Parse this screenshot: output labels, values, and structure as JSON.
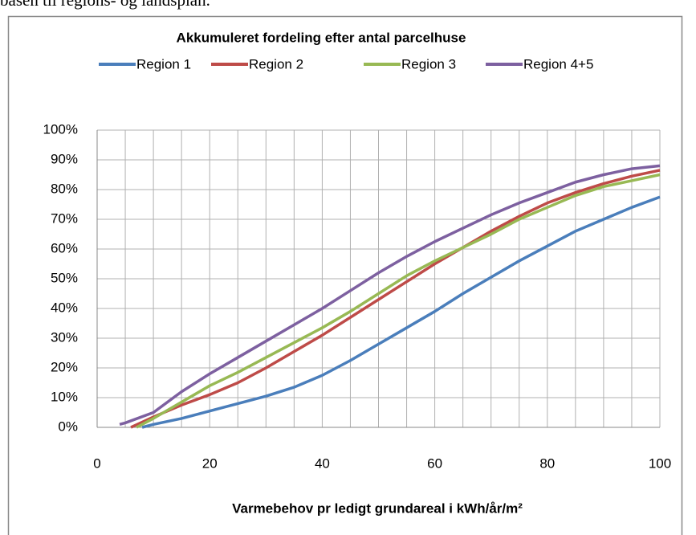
{
  "page_text": "basen til regions- og landsplan.",
  "chart_data": {
    "type": "line",
    "title": "Akkumuleret fordeling efter antal parcelhuse",
    "x_label": "Varmebehov pr ledigt grundareal i kWh/år/m²",
    "xlim": [
      0,
      100
    ],
    "xticks": [
      0,
      20,
      40,
      60,
      80,
      100
    ],
    "xgrid": [
      0,
      5,
      10,
      15,
      20,
      25,
      30,
      35,
      40,
      45,
      50,
      55,
      60,
      65,
      70,
      75,
      80,
      85,
      90,
      95,
      100
    ],
    "ylim": [
      0,
      100
    ],
    "yticks": [
      {
        "value": 0,
        "label": "0%"
      },
      {
        "value": 10,
        "label": "10%"
      },
      {
        "value": 20,
        "label": "20%"
      },
      {
        "value": 30,
        "label": "30%"
      },
      {
        "value": 40,
        "label": "40%"
      },
      {
        "value": 50,
        "label": "50%"
      },
      {
        "value": 60,
        "label": "60%"
      },
      {
        "value": 70,
        "label": "70%"
      },
      {
        "value": 80,
        "label": "80%"
      },
      {
        "value": 90,
        "label": "90%"
      },
      {
        "value": 100,
        "label": "100%"
      }
    ],
    "grid": true,
    "legend": "top",
    "series": [
      {
        "name": "Region 1",
        "color": "#4a7ebb",
        "x": [
          8,
          10,
          15,
          20,
          25,
          30,
          35,
          40,
          45,
          50,
          55,
          60,
          65,
          70,
          75,
          80,
          85,
          90,
          95,
          100
        ],
        "values": [
          0,
          1,
          3,
          5.5,
          8,
          10.5,
          13.5,
          17.5,
          22.5,
          28,
          33.5,
          39,
          45,
          50.5,
          56,
          61,
          66,
          70,
          74,
          77.5
        ]
      },
      {
        "name": "Region 2",
        "color": "#be4b48",
        "x": [
          6,
          10,
          15,
          20,
          25,
          30,
          35,
          40,
          45,
          50,
          55,
          60,
          65,
          70,
          75,
          80,
          85,
          90,
          95,
          100
        ],
        "values": [
          0,
          3.5,
          7.5,
          11,
          15,
          20,
          25.5,
          31,
          37,
          43,
          49,
          55,
          60.5,
          66,
          71,
          75.5,
          79,
          82,
          84.5,
          86.5
        ]
      },
      {
        "name": "Region 3",
        "color": "#98b954",
        "x": [
          7,
          10,
          15,
          20,
          25,
          30,
          35,
          40,
          45,
          50,
          55,
          60,
          65,
          70,
          75,
          80,
          85,
          90,
          95,
          100
        ],
        "values": [
          0,
          3,
          8.5,
          14,
          18.5,
          23.5,
          28.5,
          33.5,
          39,
          45,
          51,
          56,
          60.5,
          65,
          70,
          74,
          78,
          81,
          83,
          85
        ]
      },
      {
        "name": "Region 4+5",
        "color": "#7d60a0",
        "x": [
          4,
          5,
          10,
          15,
          20,
          25,
          30,
          35,
          40,
          45,
          50,
          55,
          60,
          65,
          70,
          75,
          80,
          85,
          90,
          95,
          100
        ],
        "values": [
          1,
          1.5,
          5,
          12,
          18,
          23.5,
          29,
          34.5,
          40,
          46,
          52,
          57.5,
          62.5,
          67,
          71.5,
          75.5,
          79,
          82.5,
          85,
          87,
          88
        ]
      }
    ]
  }
}
